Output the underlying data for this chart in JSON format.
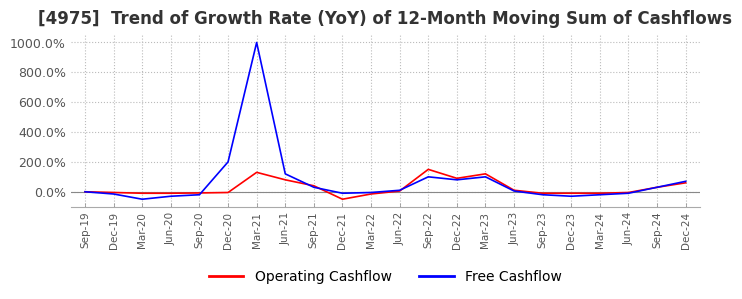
{
  "title": "[4975]  Trend of Growth Rate (YoY) of 12-Month Moving Sum of Cashflows",
  "title_fontsize": 12,
  "ylim": [
    -100,
    1050
  ],
  "yticks": [
    0,
    200,
    400,
    600,
    800,
    1000
  ],
  "ytick_labels": [
    "0.0%",
    "200.0%",
    "400.0%",
    "600.0%",
    "800.0%",
    "1000.0%"
  ],
  "background_color": "#ffffff",
  "grid_color": "#bbbbbb",
  "operating_color": "#ff0000",
  "free_color": "#0000ff",
  "x_labels": [
    "Sep-19",
    "Dec-19",
    "Mar-20",
    "Jun-20",
    "Sep-20",
    "Dec-20",
    "Mar-21",
    "Jun-21",
    "Sep-21",
    "Dec-21",
    "Mar-22",
    "Jun-22",
    "Sep-22",
    "Dec-22",
    "Mar-23",
    "Jun-23",
    "Sep-23",
    "Dec-23",
    "Mar-24",
    "Jun-24",
    "Sep-24",
    "Dec-24"
  ],
  "operating_cashflow": [
    0,
    -5,
    -10,
    -10,
    -8,
    -5,
    130,
    80,
    40,
    -50,
    -15,
    5,
    150,
    90,
    120,
    10,
    -10,
    -10,
    -10,
    -5,
    30,
    60
  ],
  "free_cashflow": [
    0,
    -15,
    -50,
    -30,
    -20,
    200,
    1000,
    120,
    30,
    -10,
    -5,
    10,
    100,
    80,
    100,
    5,
    -20,
    -30,
    -20,
    -10,
    30,
    70
  ]
}
